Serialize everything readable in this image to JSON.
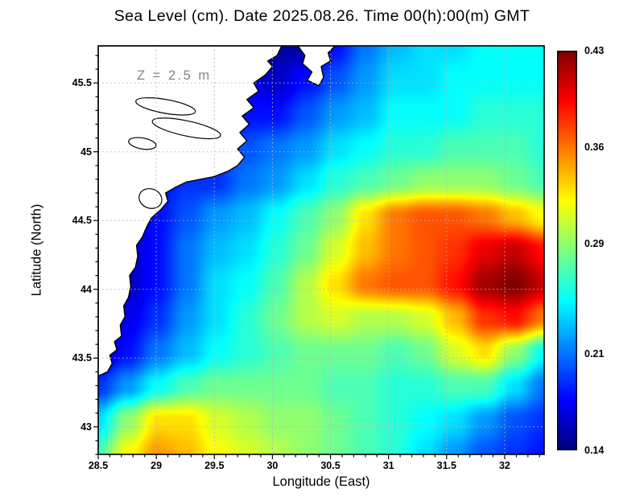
{
  "title": "Sea Level (cm). Date 2025.08.26. Time 00(h):00(m) GMT",
  "annotation": "Z = 2.5 m",
  "axes": {
    "x_label": "Longitude (East)",
    "y_label": "Latitude (North)",
    "x_ticks": [
      "28.5",
      "29",
      "29.5",
      "30",
      "30.5",
      "31",
      "31.5",
      "32"
    ],
    "y_ticks": [
      "43",
      "43.5",
      "44",
      "44.5",
      "45",
      "45.5"
    ]
  },
  "colorbar": {
    "labels": [
      "0.43",
      "0.36",
      "0.29",
      "0.21",
      "0.14"
    ],
    "min": 0.14,
    "max": 0.43
  },
  "chart_data": {
    "type": "heatmap",
    "title": "Sea Level (cm). Date 2025.08.26. Time 00(h):00(m) GMT",
    "xlabel": "Longitude (East)",
    "ylabel": "Latitude (North)",
    "x_range": [
      28.5,
      32.34
    ],
    "y_range": [
      42.8,
      45.77
    ],
    "value_range": [
      0.14,
      0.43
    ],
    "colormap": "jet",
    "grid_on": true,
    "legend_position": "right-colorbar",
    "grid": {
      "nx": 16,
      "ny": 13,
      "lon": [
        28.5,
        28.76,
        29.01,
        29.27,
        29.52,
        29.78,
        30.04,
        30.29,
        30.55,
        30.8,
        31.06,
        31.32,
        31.57,
        31.83,
        32.08,
        32.34
      ],
      "lat": [
        45.77,
        45.52,
        45.28,
        45.03,
        44.78,
        44.53,
        44.29,
        44.04,
        43.79,
        43.54,
        43.3,
        43.05,
        42.8
      ],
      "values": [
        [
          0.2,
          0.2,
          0.2,
          0.2,
          0.19,
          0.17,
          0.15,
          0.15,
          0.18,
          0.21,
          0.23,
          0.24,
          0.24,
          0.25,
          0.25,
          0.25
        ],
        [
          0.2,
          0.2,
          0.2,
          0.2,
          0.19,
          0.17,
          0.16,
          0.18,
          0.2,
          0.22,
          0.24,
          0.24,
          0.25,
          0.25,
          0.25,
          0.25
        ],
        [
          0.21,
          0.21,
          0.21,
          0.2,
          0.19,
          0.18,
          0.18,
          0.2,
          0.22,
          0.23,
          0.25,
          0.25,
          0.25,
          0.26,
          0.26,
          0.26
        ],
        [
          0.21,
          0.21,
          0.21,
          0.2,
          0.2,
          0.2,
          0.21,
          0.22,
          0.24,
          0.25,
          0.26,
          0.26,
          0.27,
          0.27,
          0.27,
          0.26
        ],
        [
          0.19,
          0.18,
          0.18,
          0.19,
          0.19,
          0.21,
          0.22,
          0.24,
          0.26,
          0.27,
          0.28,
          0.29,
          0.29,
          0.29,
          0.28,
          0.27
        ],
        [
          0.18,
          0.17,
          0.18,
          0.2,
          0.22,
          0.23,
          0.25,
          0.27,
          0.29,
          0.33,
          0.36,
          0.37,
          0.37,
          0.36,
          0.34,
          0.32
        ],
        [
          0.17,
          0.16,
          0.18,
          0.21,
          0.23,
          0.24,
          0.26,
          0.28,
          0.31,
          0.34,
          0.36,
          0.37,
          0.38,
          0.4,
          0.41,
          0.39
        ],
        [
          0.17,
          0.16,
          0.18,
          0.21,
          0.24,
          0.25,
          0.27,
          0.3,
          0.33,
          0.36,
          0.37,
          0.37,
          0.39,
          0.42,
          0.43,
          0.41
        ],
        [
          0.18,
          0.17,
          0.19,
          0.22,
          0.24,
          0.26,
          0.28,
          0.3,
          0.31,
          0.3,
          0.3,
          0.31,
          0.34,
          0.38,
          0.39,
          0.36
        ],
        [
          0.16,
          0.18,
          0.21,
          0.23,
          0.25,
          0.26,
          0.27,
          0.28,
          0.28,
          0.28,
          0.27,
          0.28,
          0.31,
          0.33,
          0.29,
          0.25
        ],
        [
          0.19,
          0.22,
          0.25,
          0.27,
          0.28,
          0.28,
          0.28,
          0.28,
          0.27,
          0.27,
          0.26,
          0.26,
          0.27,
          0.27,
          0.24,
          0.21
        ],
        [
          0.24,
          0.29,
          0.33,
          0.33,
          0.31,
          0.3,
          0.29,
          0.29,
          0.28,
          0.27,
          0.26,
          0.25,
          0.24,
          0.22,
          0.2,
          0.19
        ],
        [
          0.27,
          0.32,
          0.35,
          0.34,
          0.32,
          0.31,
          0.3,
          0.29,
          0.28,
          0.27,
          0.26,
          0.24,
          0.22,
          0.2,
          0.19,
          0.18
        ]
      ]
    },
    "coastline": [
      [
        28.5,
        43.37
      ],
      [
        28.58,
        43.4
      ],
      [
        28.62,
        43.46
      ],
      [
        28.6,
        43.52
      ],
      [
        28.66,
        43.56
      ],
      [
        28.64,
        43.62
      ],
      [
        28.7,
        43.66
      ],
      [
        28.69,
        43.74
      ],
      [
        28.73,
        43.8
      ],
      [
        28.72,
        43.88
      ],
      [
        28.76,
        43.94
      ],
      [
        28.78,
        44.02
      ],
      [
        28.77,
        44.1
      ],
      [
        28.82,
        44.16
      ],
      [
        28.84,
        44.24
      ],
      [
        28.83,
        44.32
      ],
      [
        28.88,
        44.38
      ],
      [
        28.92,
        44.46
      ],
      [
        28.96,
        44.52
      ],
      [
        29.04,
        44.58
      ],
      [
        29.1,
        44.64
      ],
      [
        29.08,
        44.7
      ],
      [
        29.16,
        44.74
      ],
      [
        29.26,
        44.78
      ],
      [
        29.38,
        44.8
      ],
      [
        29.5,
        44.82
      ],
      [
        29.62,
        44.86
      ],
      [
        29.7,
        44.9
      ],
      [
        29.76,
        44.96
      ],
      [
        29.7,
        45.02
      ],
      [
        29.78,
        45.08
      ],
      [
        29.72,
        45.14
      ],
      [
        29.8,
        45.2
      ],
      [
        29.74,
        45.26
      ],
      [
        29.84,
        45.32
      ],
      [
        29.78,
        45.38
      ],
      [
        29.88,
        45.44
      ],
      [
        29.84,
        45.5
      ],
      [
        29.94,
        45.56
      ],
      [
        30.0,
        45.62
      ],
      [
        29.96,
        45.66
      ],
      [
        30.04,
        45.7
      ],
      [
        30.08,
        45.77
      ],
      [
        28.5,
        45.77
      ]
    ],
    "spit": [
      [
        30.22,
        45.77
      ],
      [
        30.28,
        45.7
      ],
      [
        30.26,
        45.64
      ],
      [
        30.34,
        45.58
      ],
      [
        30.3,
        45.52
      ],
      [
        30.4,
        45.48
      ],
      [
        30.44,
        45.54
      ],
      [
        30.42,
        45.62
      ],
      [
        30.5,
        45.66
      ],
      [
        30.48,
        45.72
      ],
      [
        30.54,
        45.77
      ]
    ],
    "lakes": [
      {
        "cx": 29.08,
        "cy": 45.33,
        "rx": 0.26,
        "ry": 0.05,
        "rot": 10
      },
      {
        "cx": 29.26,
        "cy": 45.17,
        "rx": 0.3,
        "ry": 0.055,
        "rot": 12
      },
      {
        "cx": 28.88,
        "cy": 45.06,
        "rx": 0.12,
        "ry": 0.04,
        "rot": 10
      },
      {
        "cx": 28.95,
        "cy": 44.66,
        "rx": 0.1,
        "ry": 0.07,
        "rot": 20
      }
    ]
  }
}
